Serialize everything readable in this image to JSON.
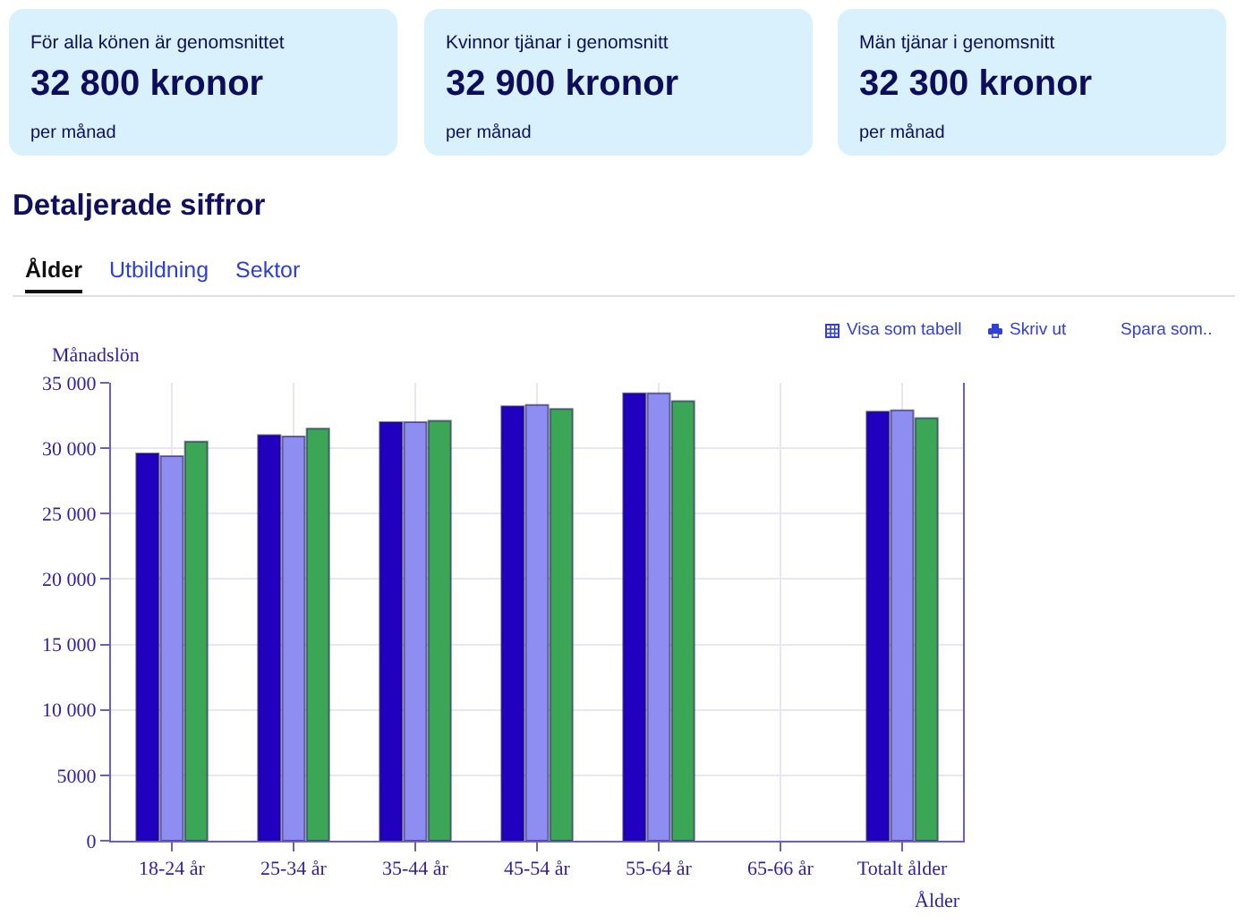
{
  "chart_data": [
    {
      "type": "other",
      "title": "För alla könen är genomsnittet",
      "annotations": [
        "32 800 kronor",
        "per månad"
      ]
    },
    {
      "type": "other",
      "title": "Kvinnor tjänar i genomsnitt",
      "annotations": [
        "32 900 kronor",
        "per månad"
      ]
    },
    {
      "type": "other",
      "title": "Män tjänar i genomsnitt",
      "annotations": [
        "32 300 kronor",
        "per månad"
      ]
    },
    {
      "type": "other",
      "title": "Detaljerade siffror",
      "annotations": [
        "Ålder",
        "Utbildning",
        "Sektor"
      ]
    },
    {
      "type": "bar",
      "xlabel": "Ålder",
      "ylabel": "Månadslön",
      "categories": [
        "18-24 år",
        "25-34 år",
        "35-44 år",
        "45-54 år",
        "55-64 år",
        "65-66 år",
        "Totalt ålder"
      ],
      "series": [
        {
          "color": "#2100c0",
          "values": [
            29600,
            31000,
            32000,
            33200,
            34200,
            null,
            32800
          ]
        },
        {
          "color": "#8e8ef2",
          "values": [
            29400,
            30900,
            32000,
            33300,
            34200,
            null,
            32900
          ]
        },
        {
          "color": "#3ba655",
          "values": [
            30500,
            31500,
            32100,
            33000,
            33600,
            null,
            32300
          ]
        }
      ],
      "ylim": [
        0,
        35000
      ],
      "yticks": [
        0,
        5000,
        {
          "value": 10000,
          "label": "10 000"
        },
        {
          "value": 15000,
          "label": "15 000"
        },
        {
          "value": 20000,
          "label": "20 000"
        },
        {
          "value": 25000,
          "label": "25 000"
        },
        {
          "value": 30000,
          "label": "30 000"
        },
        {
          "value": 35000,
          "label": "35 000"
        }
      ],
      "grid": true,
      "annotations": [
        "Visa som tabell",
        "Skriv ut",
        "Spara som.."
      ]
    }
  ]
}
